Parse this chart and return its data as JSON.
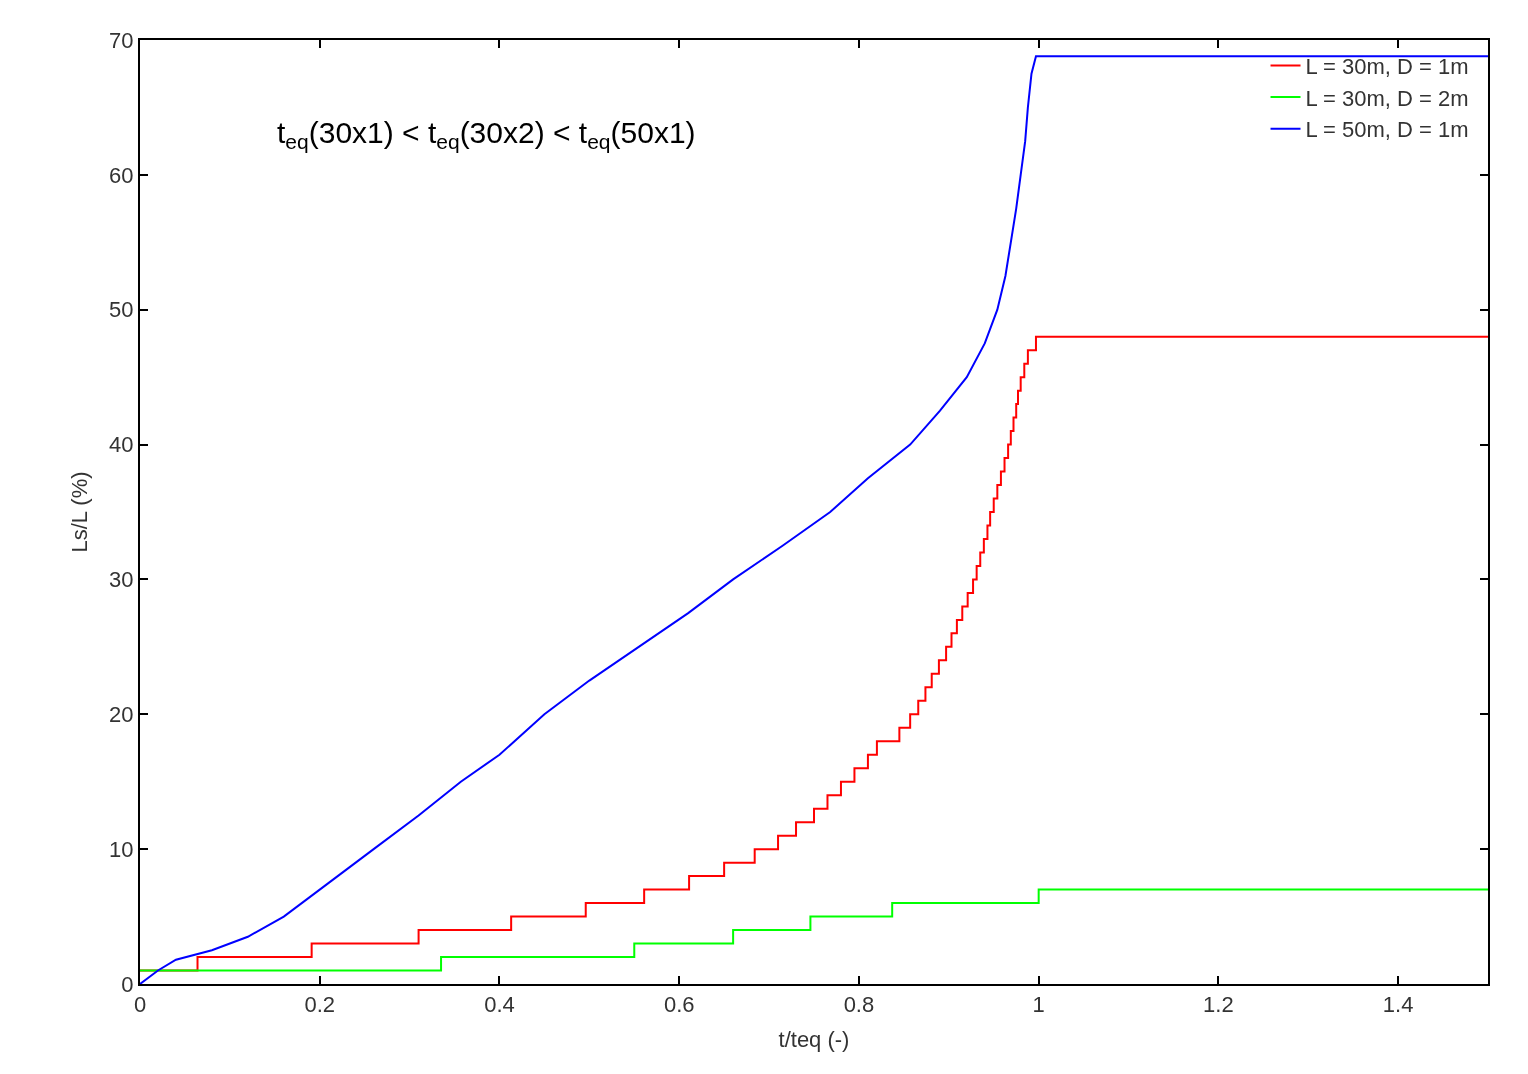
{
  "chart_data": {
    "type": "line",
    "xlabel": "t/teq (-)",
    "ylabel": "Ls/L (%)",
    "annotations": [
      "t$_{eq}$(30x1) < t$_{eq}$(30x2) < t$_{eq}$(50x1)"
    ],
    "xlim": [
      0,
      1.5
    ],
    "xticks": [
      0,
      0.2,
      0.4,
      0.6,
      0.8,
      1,
      1.2,
      1.4
    ],
    "ylim": [
      0,
      70
    ],
    "yticks": [
      0,
      10,
      20,
      30,
      40,
      50,
      60,
      70
    ],
    "grid": false,
    "legend": "top right",
    "marker": "none",
    "line_style": "solid",
    "series": [
      {
        "name": "L = 30m, D = 1m",
        "color": "#ff0000",
        "type": "step",
        "x": [
          0,
          0.064,
          0.191,
          0.31,
          0.413,
          0.496,
          0.561,
          0.611,
          0.65,
          0.684,
          0.71,
          0.73,
          0.75,
          0.765,
          0.78,
          0.795,
          0.81,
          0.82,
          0.845,
          0.857,
          0.866,
          0.874,
          0.881,
          0.889,
          0.897,
          0.903,
          0.909,
          0.915,
          0.921,
          0.927,
          0.931,
          0.935,
          0.939,
          0.943,
          0.946,
          0.95,
          0.954,
          0.958,
          0.962,
          0.966,
          0.969,
          0.972,
          0.975,
          0.977,
          0.98,
          0.984,
          0.988,
          0.997,
          1.5
        ],
        "values": [
          1,
          2,
          3,
          4,
          5,
          6,
          7,
          8,
          9,
          10,
          11,
          12,
          13,
          14,
          15,
          16,
          17,
          18,
          19,
          20,
          21,
          22,
          23,
          24,
          25,
          26,
          27,
          28,
          29,
          30,
          31,
          32,
          33,
          34,
          35,
          36,
          37,
          38,
          39,
          40,
          41,
          42,
          43,
          44,
          45,
          46,
          47,
          48,
          48
        ]
      },
      {
        "name": "L = 30m, D = 2m",
        "color": "#00ff00",
        "type": "step",
        "x": [
          0,
          0.335,
          0.55,
          0.66,
          0.746,
          0.837,
          1.0,
          1.5
        ],
        "values": [
          1,
          2,
          3,
          4,
          5,
          6,
          7,
          7
        ]
      },
      {
        "name": "L = 50m, D = 1m",
        "color": "#0000ff",
        "x": [
          0,
          0.02,
          0.04,
          0.08,
          0.12,
          0.16,
          0.21,
          0.26,
          0.31,
          0.357,
          0.4,
          0.45,
          0.5,
          0.555,
          0.61,
          0.66,
          0.715,
          0.768,
          0.81,
          0.857,
          0.89,
          0.92,
          0.94,
          0.954,
          0.963,
          0.969,
          0.975,
          0.98,
          0.985,
          0.988,
          0.992,
          0.997,
          1.5
        ],
        "values": [
          0,
          1,
          1.8,
          2.5,
          3.5,
          5,
          7.5,
          10,
          12.5,
          15,
          17,
          20,
          22.5,
          25,
          27.5,
          30,
          32.5,
          35,
          37.5,
          40,
          42.5,
          45,
          47.5,
          50,
          52.5,
          55,
          57.5,
          60,
          62.5,
          65,
          67.5,
          68.8,
          68.8
        ]
      }
    ]
  }
}
